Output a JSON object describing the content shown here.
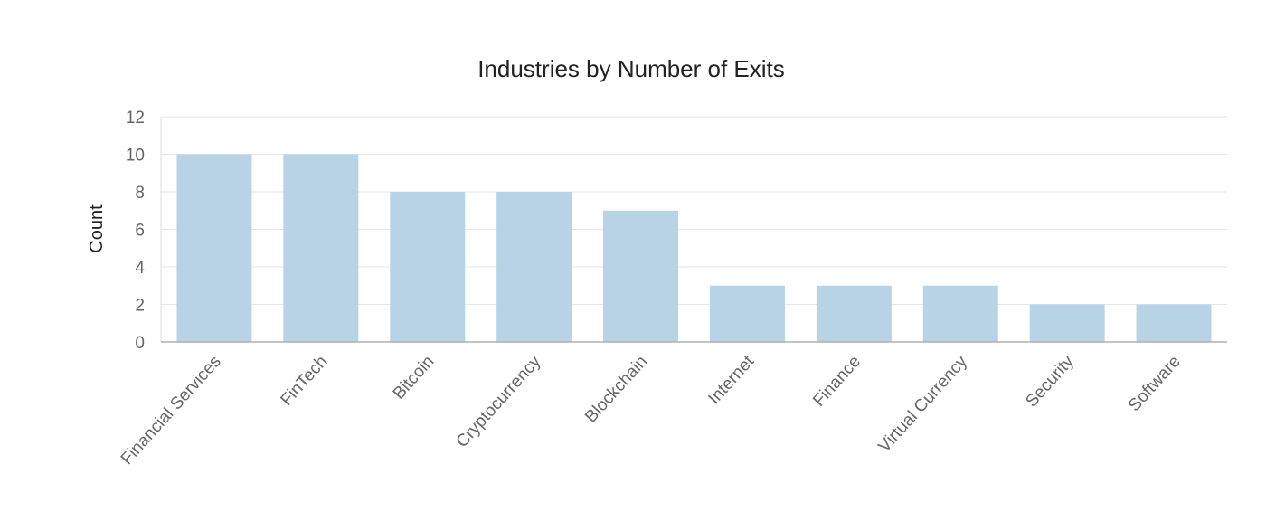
{
  "chart_data": {
    "type": "bar",
    "title": "Industries by Number of Exits",
    "xlabel": "",
    "ylabel": "Count",
    "categories": [
      "Financial Services",
      "FinTech",
      "Bitcoin",
      "Cryptocurrency",
      "Blockchain",
      "Internet",
      "Finance",
      "Virtual Currency",
      "Security",
      "Software"
    ],
    "values": [
      10,
      10,
      8,
      8,
      7,
      3,
      3,
      3,
      2,
      2
    ],
    "ylim": [
      0,
      12
    ],
    "yticks": [
      0,
      2,
      4,
      6,
      8,
      10,
      12
    ],
    "grid": true,
    "legend": "none",
    "bar_color": "#b8d3e5"
  }
}
